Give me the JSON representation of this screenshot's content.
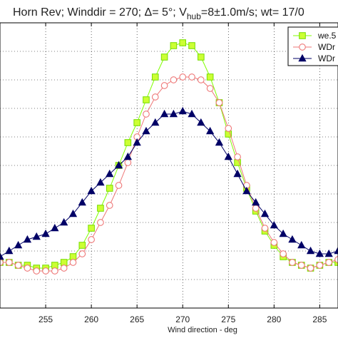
{
  "chart_data": {
    "type": "line",
    "title_parts": {
      "main": "Horn Rev;  Winddir = 270; Δ= 5°; V",
      "sub": "hub",
      "rest": "=8±1.0m/s; wt= 17/0"
    },
    "xlabel": "Wind direction  - deg",
    "ylabel": "",
    "xlim": [
      250,
      287
    ],
    "ylim": [
      0,
      1
    ],
    "grid": true,
    "legend_position": "top-right",
    "x_tick_labels": [
      "255",
      "260",
      "265",
      "270",
      "275",
      "280",
      "285"
    ],
    "x": [
      250,
      251,
      252,
      253,
      254,
      255,
      256,
      257,
      258,
      259,
      260,
      261,
      262,
      263,
      264,
      265,
      266,
      267,
      268,
      269,
      270,
      271,
      272,
      273,
      274,
      275,
      276,
      277,
      278,
      279,
      280,
      281,
      282,
      283,
      284,
      285,
      286,
      287
    ],
    "series": [
      {
        "name": "we.5",
        "color": "#80ff00",
        "marker": "square",
        "values": [
          0.16,
          0.16,
          0.15,
          0.15,
          0.14,
          0.14,
          0.15,
          0.16,
          0.18,
          0.22,
          0.28,
          0.35,
          0.42,
          0.5,
          0.58,
          0.65,
          0.73,
          0.81,
          0.88,
          0.92,
          0.93,
          0.92,
          0.88,
          0.81,
          0.72,
          0.61,
          0.51,
          0.42,
          0.34,
          0.27,
          0.22,
          0.18,
          0.16,
          0.15,
          0.14,
          0.15,
          0.16,
          0.16
        ]
      },
      {
        "name": "WDr",
        "color": "#ee7777",
        "marker": "circle",
        "values": [
          0.16,
          0.16,
          0.15,
          0.14,
          0.13,
          0.13,
          0.13,
          0.14,
          0.16,
          0.19,
          0.24,
          0.3,
          0.36,
          0.43,
          0.51,
          0.6,
          0.68,
          0.74,
          0.78,
          0.8,
          0.81,
          0.81,
          0.8,
          0.77,
          0.72,
          0.63,
          0.53,
          0.43,
          0.35,
          0.28,
          0.23,
          0.19,
          0.16,
          0.15,
          0.14,
          0.15,
          0.16,
          0.17
        ]
      },
      {
        "name": "WDr",
        "color": "#000066",
        "marker": "triangle",
        "values": [
          0.18,
          0.2,
          0.22,
          0.24,
          0.25,
          0.26,
          0.28,
          0.3,
          0.33,
          0.37,
          0.41,
          0.44,
          0.47,
          0.5,
          0.53,
          0.58,
          0.62,
          0.65,
          0.68,
          0.68,
          0.69,
          0.68,
          0.65,
          0.62,
          0.58,
          0.53,
          0.47,
          0.41,
          0.37,
          0.33,
          0.29,
          0.26,
          0.24,
          0.22,
          0.2,
          0.19,
          0.19,
          0.2
        ]
      }
    ]
  }
}
